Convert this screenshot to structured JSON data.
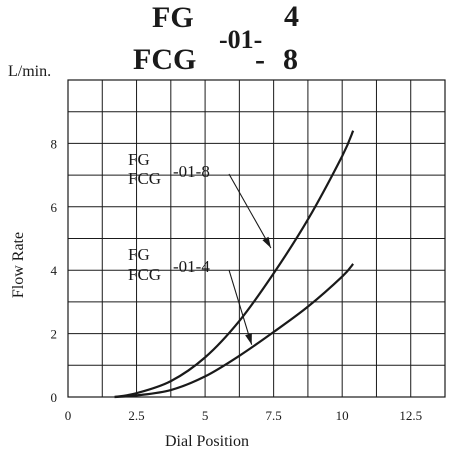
{
  "title": {
    "line1_left": "FG",
    "line2_left": "FCG",
    "middle": "-01-",
    "line1_right": "4",
    "line2_middle": "-",
    "line2_right": "8"
  },
  "chart_data": {
    "type": "line",
    "xlabel": "Dial Position",
    "ylabel": "Flow Rate",
    "yunit": "L/min.",
    "xlim": [
      0,
      13.75
    ],
    "ylim": [
      0,
      10
    ],
    "x_ticks": [
      0,
      2.5,
      5,
      7.5,
      10,
      12.5
    ],
    "x_tick_labels": [
      "0",
      "2.5",
      "5",
      "7.5",
      "10",
      "12.5"
    ],
    "y_ticks": [
      0,
      2,
      4,
      6,
      8
    ],
    "y_tick_labels": [
      "0",
      "2",
      "4",
      "6",
      "8"
    ],
    "grid": true,
    "series": [
      {
        "label_line1": "FG",
        "label_line2": "FCG",
        "label_suffix": "-01-8",
        "x": [
          1.7,
          2.5,
          3.75,
          5,
          6.25,
          7.5,
          8.75,
          10,
          10.4
        ],
        "y": [
          0,
          0.12,
          0.5,
          1.25,
          2.4,
          3.9,
          5.6,
          7.6,
          8.4
        ]
      },
      {
        "label_line1": "FG",
        "label_line2": "FCG",
        "label_suffix": "-01-4",
        "x": [
          1.7,
          2.5,
          3.75,
          5,
          6.25,
          7.5,
          8.75,
          10,
          10.4
        ],
        "y": [
          0,
          0.05,
          0.22,
          0.65,
          1.3,
          2.05,
          2.85,
          3.8,
          4.2
        ]
      }
    ]
  }
}
